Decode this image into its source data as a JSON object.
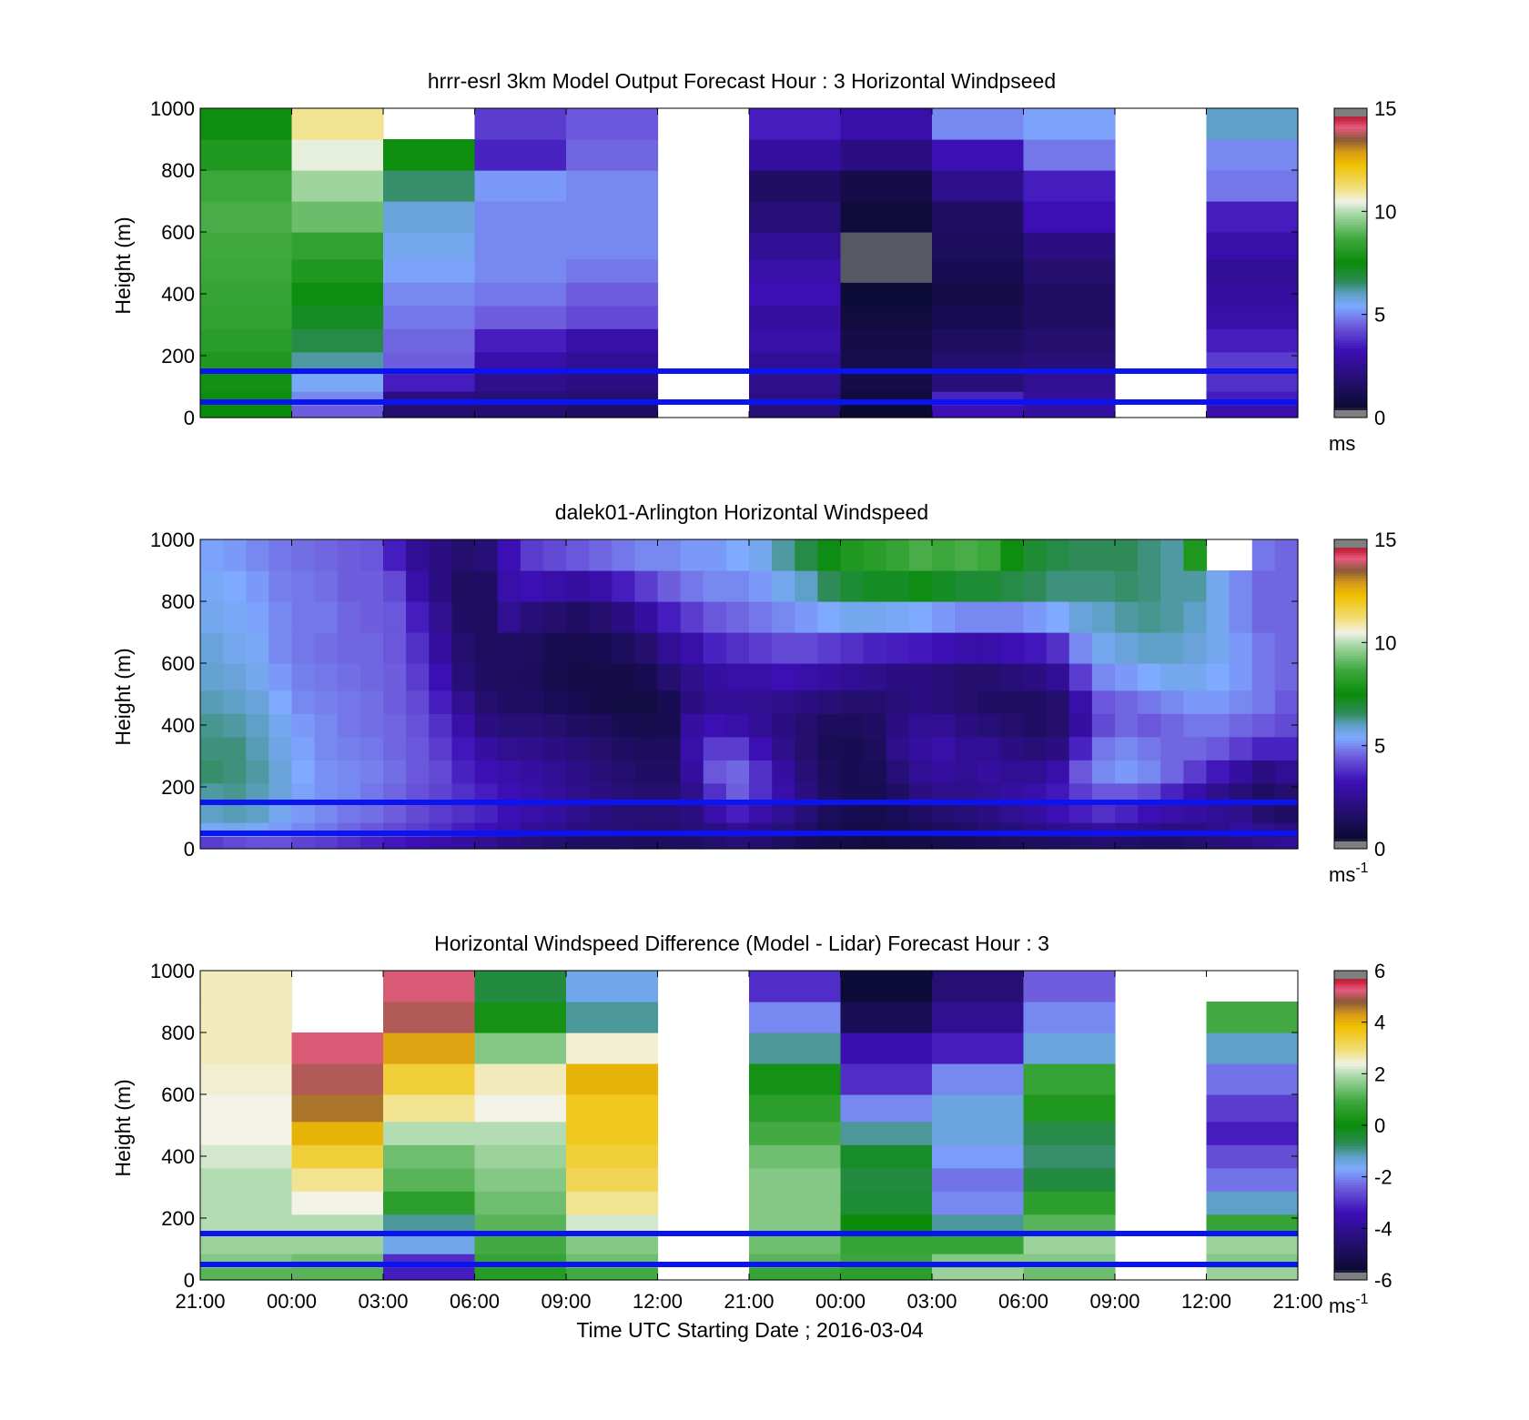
{
  "chart_data": [
    {
      "type": "heatmap",
      "title": "hrrr-esrl 3km Model Output   Forecast Hour : 3 Horizontal Windpseed",
      "ylabel": "Height (m)",
      "ylim": [
        0,
        1000
      ],
      "yticks": [
        "0",
        "200",
        "400",
        "600",
        "800",
        "1000"
      ],
      "colorbar": {
        "label": "ms",
        "sup": "",
        "ticks": [
          "0",
          "5",
          "10",
          "15"
        ],
        "range": [
          0,
          15
        ]
      },
      "hlines": [
        50,
        150
      ],
      "time_columns": [
        "21:00",
        "00:00",
        "03:00",
        "06:00",
        "09:00",
        "12:00",
        "21:00",
        "00:00",
        "03:00",
        "06:00",
        "09:00",
        "12:00"
      ],
      "heights": [
        20,
        60,
        110,
        175,
        250,
        325,
        400,
        475,
        550,
        650,
        750,
        850,
        950
      ],
      "values": [
        [
          7.5,
          7.6,
          7.7,
          8.0,
          8.2,
          8.4,
          8.5,
          8.6,
          8.7,
          8.8,
          8.6,
          8.0,
          7.6
        ],
        [
          4.5,
          5.0,
          5.5,
          6.2,
          6.8,
          7.2,
          7.6,
          8.0,
          8.4,
          9.2,
          9.8,
          10.4,
          11.0
        ],
        [
          1.8,
          2.2,
          3.5,
          4.5,
          4.6,
          4.8,
          5.0,
          5.3,
          5.6,
          5.8,
          6.5,
          7.6,
          null
        ],
        [
          1.8,
          2.0,
          2.4,
          3.0,
          3.5,
          4.5,
          4.8,
          5.0,
          5.0,
          5.0,
          5.2,
          3.6,
          4.0
        ],
        [
          1.6,
          1.8,
          2.2,
          2.6,
          3.0,
          4.2,
          4.5,
          4.8,
          5.0,
          5.0,
          5.0,
          4.6,
          4.4
        ],
        [
          null,
          null,
          null,
          null,
          null,
          null,
          null,
          null,
          null,
          null,
          null,
          null,
          null
        ],
        [
          2.0,
          2.3,
          2.4,
          2.6,
          3.0,
          2.8,
          3.2,
          3.0,
          2.6,
          2.0,
          1.6,
          2.8,
          3.5
        ],
        [
          0.5,
          0.8,
          1.0,
          1.1,
          1.0,
          0.8,
          0.6,
          0.4,
          0.4,
          0.7,
          1.0,
          2.2,
          3.0
        ],
        [
          3.2,
          3.6,
          2.0,
          1.8,
          1.5,
          1.2,
          1.0,
          1.2,
          1.4,
          1.6,
          2.4,
          3.2,
          5.0
        ],
        [
          2.8,
          2.7,
          2.5,
          2.0,
          1.8,
          1.6,
          1.6,
          1.8,
          2.2,
          3.2,
          3.5,
          4.8,
          5.3
        ],
        [
          null,
          null,
          null,
          null,
          null,
          null,
          null,
          null,
          null,
          null,
          null,
          null,
          null
        ],
        [
          3.0,
          3.5,
          3.8,
          4.0,
          3.5,
          3.0,
          2.8,
          2.6,
          3.0,
          3.5,
          4.8,
          5.0,
          6.0
        ]
      ]
    },
    {
      "type": "heatmap",
      "title": "dalek01-Arlington  Horizontal Windspeed",
      "ylabel": "Height (m)",
      "ylim": [
        0,
        1000
      ],
      "yticks": [
        "0",
        "200",
        "400",
        "600",
        "800",
        "1000"
      ],
      "colorbar": {
        "label": "ms",
        "sup": "-1",
        "ticks": [
          "0",
          "5",
          "10",
          "15"
        ],
        "range": [
          0,
          15
        ]
      },
      "hlines": [
        50,
        150
      ],
      "time_axis": {
        "start": "21:00",
        "end": "21:00",
        "columns": 48
      },
      "heights": [
        20,
        60,
        110,
        175,
        250,
        325,
        400,
        475,
        550,
        650,
        750,
        850,
        950
      ],
      "values": [
        [
          4.0,
          5.5,
          6.0,
          6.2,
          6.5,
          6.4,
          6.3,
          6.1,
          5.9,
          5.8,
          5.6,
          5.5,
          5.3
        ],
        [
          4.2,
          5.6,
          6.1,
          6.3,
          6.4,
          6.4,
          6.2,
          6.0,
          5.8,
          5.6,
          5.5,
          5.4,
          5.2
        ],
        [
          4.3,
          5.5,
          6.0,
          6.1,
          6.2,
          6.1,
          6.0,
          5.8,
          5.6,
          5.5,
          5.3,
          5.2,
          5.0
        ],
        [
          4.3,
          5.2,
          5.6,
          5.8,
          5.8,
          5.7,
          5.6,
          5.4,
          5.2,
          5.0,
          5.0,
          4.9,
          4.8
        ],
        [
          4.1,
          5.0,
          5.2,
          5.3,
          5.4,
          5.3,
          5.2,
          5.0,
          4.9,
          4.8,
          4.8,
          4.8,
          4.7
        ],
        [
          4.0,
          4.8,
          5.0,
          5.1,
          5.1,
          5.0,
          5.0,
          4.9,
          4.8,
          4.7,
          4.8,
          4.7,
          4.6
        ],
        [
          3.8,
          4.6,
          4.8,
          5.0,
          5.0,
          4.9,
          4.8,
          4.8,
          4.7,
          4.6,
          4.6,
          4.5,
          4.5
        ],
        [
          3.6,
          4.4,
          4.7,
          4.8,
          4.9,
          4.8,
          4.7,
          4.7,
          4.6,
          4.6,
          4.5,
          4.5,
          4.4
        ],
        [
          3.4,
          4.2,
          4.5,
          4.6,
          4.7,
          4.6,
          4.6,
          4.5,
          4.5,
          4.4,
          4.4,
          4.2,
          3.5
        ],
        [
          3.2,
          4.0,
          4.2,
          4.3,
          4.4,
          4.4,
          4.3,
          4.2,
          4.0,
          3.8,
          3.5,
          3.0,
          2.6
        ],
        [
          3.0,
          3.8,
          4.0,
          4.1,
          4.2,
          4.0,
          3.8,
          3.5,
          3.2,
          2.8,
          2.5,
          2.2,
          2.2
        ],
        [
          2.8,
          3.5,
          3.8,
          3.8,
          3.6,
          3.4,
          3.0,
          2.5,
          2.0,
          1.8,
          1.6,
          1.5,
          1.8
        ],
        [
          2.5,
          3.3,
          3.6,
          3.5,
          3.2,
          2.8,
          2.2,
          1.8,
          1.6,
          1.5,
          1.5,
          1.6,
          2.0
        ],
        [
          2.2,
          3.0,
          3.2,
          3.2,
          3.0,
          2.5,
          2.0,
          1.6,
          1.5,
          1.6,
          2.5,
          3.0,
          3.2
        ],
        [
          2.0,
          2.6,
          3.0,
          3.0,
          2.8,
          2.4,
          2.0,
          1.6,
          1.4,
          1.5,
          2.0,
          3.2,
          4.0
        ],
        [
          1.8,
          2.4,
          2.8,
          2.7,
          2.6,
          2.2,
          1.8,
          1.3,
          1.1,
          1.2,
          1.8,
          3.0,
          4.2
        ],
        [
          1.6,
          2.2,
          2.4,
          2.4,
          2.3,
          2.0,
          1.6,
          1.2,
          1.0,
          1.1,
          1.6,
          2.8,
          4.4
        ],
        [
          1.6,
          2.0,
          2.2,
          2.2,
          2.0,
          1.8,
          1.4,
          1.0,
          1.0,
          1.2,
          1.8,
          3.0,
          4.6
        ],
        [
          1.5,
          1.9,
          2.0,
          2.0,
          1.8,
          1.6,
          1.2,
          0.9,
          1.0,
          1.4,
          2.2,
          3.5,
          4.8
        ],
        [
          1.4,
          1.8,
          1.9,
          1.8,
          1.6,
          1.4,
          1.1,
          0.9,
          1.2,
          1.8,
          2.8,
          4.0,
          5.0
        ],
        [
          1.5,
          1.8,
          2.0,
          1.8,
          1.6,
          1.4,
          1.2,
          1.2,
          1.8,
          2.6,
          3.5,
          4.5,
          5.0
        ],
        [
          1.6,
          2.0,
          2.2,
          2.4,
          2.8,
          3.0,
          2.8,
          2.2,
          2.4,
          3.0,
          4.0,
          4.8,
          5.2
        ],
        [
          1.8,
          2.2,
          3.0,
          3.8,
          4.4,
          4.0,
          3.2,
          2.6,
          2.8,
          3.6,
          4.4,
          5.0,
          5.2
        ],
        [
          2.0,
          2.5,
          3.5,
          4.5,
          4.6,
          4.0,
          3.0,
          2.6,
          3.0,
          3.8,
          4.6,
          5.0,
          5.4
        ],
        [
          1.8,
          2.3,
          3.0,
          3.8,
          3.8,
          3.2,
          2.6,
          2.5,
          3.0,
          4.0,
          4.8,
          5.2,
          5.6
        ],
        [
          1.5,
          2.0,
          2.6,
          3.0,
          2.8,
          2.4,
          2.2,
          2.4,
          3.2,
          4.2,
          5.0,
          5.6,
          6.2
        ],
        [
          1.2,
          1.6,
          2.0,
          2.2,
          2.0,
          1.8,
          1.8,
          2.2,
          3.0,
          4.2,
          5.2,
          6.0,
          6.8
        ],
        [
          1.0,
          1.2,
          1.4,
          1.5,
          1.4,
          1.3,
          1.4,
          2.0,
          2.8,
          4.0,
          5.4,
          6.6,
          7.4
        ],
        [
          0.9,
          1.0,
          1.2,
          1.2,
          1.2,
          1.2,
          1.4,
          1.8,
          2.6,
          3.8,
          5.6,
          7.0,
          8.0
        ],
        [
          0.8,
          1.0,
          1.1,
          1.2,
          1.3,
          1.4,
          1.6,
          1.8,
          2.4,
          3.6,
          5.6,
          7.2,
          8.2
        ],
        [
          0.9,
          1.1,
          1.3,
          1.6,
          2.0,
          2.4,
          2.2,
          2.0,
          2.2,
          3.5,
          5.5,
          7.2,
          8.5
        ],
        [
          1.0,
          1.2,
          1.6,
          2.2,
          2.6,
          2.8,
          2.6,
          2.2,
          2.2,
          3.4,
          5.4,
          7.4,
          8.8
        ],
        [
          1.1,
          1.4,
          1.8,
          2.4,
          2.8,
          3.0,
          2.6,
          2.0,
          2.0,
          3.2,
          5.2,
          7.2,
          8.6
        ],
        [
          1.2,
          1.6,
          2.0,
          2.4,
          2.6,
          2.6,
          2.2,
          1.8,
          1.8,
          3.0,
          5.0,
          7.0,
          8.8
        ],
        [
          1.3,
          1.8,
          2.2,
          2.6,
          2.8,
          2.6,
          2.0,
          1.6,
          1.8,
          3.0,
          5.0,
          7.0,
          8.6
        ],
        [
          1.4,
          2.0,
          2.5,
          2.8,
          2.6,
          2.2,
          1.8,
          1.6,
          2.0,
          3.2,
          5.0,
          6.8,
          7.6
        ],
        [
          1.5,
          2.2,
          2.8,
          3.0,
          2.6,
          2.0,
          1.6,
          1.6,
          2.2,
          3.4,
          5.2,
          6.6,
          7.0
        ],
        [
          1.6,
          2.4,
          3.2,
          3.4,
          3.0,
          2.2,
          1.8,
          1.8,
          2.6,
          3.8,
          5.4,
          6.4,
          6.8
        ],
        [
          1.7,
          2.6,
          3.5,
          4.0,
          4.4,
          3.6,
          2.8,
          3.0,
          4.0,
          5.0,
          5.8,
          6.4,
          6.6
        ],
        [
          1.8,
          2.8,
          3.8,
          4.4,
          5.0,
          4.8,
          4.2,
          4.4,
          5.0,
          5.6,
          6.0,
          6.4,
          6.6
        ],
        [
          1.7,
          2.6,
          3.6,
          4.4,
          5.2,
          5.0,
          4.6,
          4.6,
          5.2,
          5.8,
          6.2,
          6.5,
          6.6
        ],
        [
          1.6,
          2.4,
          3.2,
          4.2,
          5.0,
          4.8,
          4.4,
          4.8,
          5.4,
          6.0,
          6.3,
          6.4,
          6.4
        ],
        [
          1.6,
          2.2,
          3.0,
          3.6,
          4.6,
          4.6,
          4.6,
          5.0,
          5.6,
          6.0,
          6.2,
          6.2,
          6.2
        ],
        [
          1.8,
          2.2,
          2.8,
          3.0,
          4.0,
          4.6,
          4.8,
          5.2,
          5.6,
          5.8,
          6.0,
          6.2,
          8.0
        ],
        [
          2.0,
          2.4,
          2.6,
          2.4,
          3.4,
          4.4,
          4.8,
          5.2,
          5.4,
          5.6,
          5.6,
          5.6,
          null
        ],
        [
          2.2,
          2.8,
          2.4,
          2.0,
          2.8,
          4.0,
          4.6,
          5.0,
          5.2,
          5.2,
          5.0,
          5.0,
          null
        ],
        [
          2.4,
          2.4,
          1.8,
          1.6,
          2.2,
          3.6,
          4.4,
          4.8,
          4.8,
          4.8,
          4.6,
          4.6,
          4.8
        ],
        [
          2.6,
          2.2,
          1.6,
          1.8,
          2.6,
          3.6,
          4.2,
          4.4,
          4.6,
          4.6,
          4.6,
          4.6,
          4.6
        ]
      ]
    },
    {
      "type": "heatmap",
      "title": "Horizontal Windspeed Difference (Model - Lidar) Forecast Hour : 3",
      "ylabel": "Height (m)",
      "xlabel": "Time UTC  Starting Date ; 2016-03-04",
      "ylim": [
        0,
        1000
      ],
      "yticks": [
        "0",
        "200",
        "400",
        "600",
        "800",
        "1000"
      ],
      "xticks": [
        "21:00",
        "00:00",
        "03:00",
        "06:00",
        "09:00",
        "12:00",
        "21:00",
        "00:00",
        "03:00",
        "06:00",
        "09:00",
        "12:00",
        "21:00"
      ],
      "colorbar": {
        "label": "ms",
        "sup": "-1",
        "ticks": [
          "-6",
          "-4",
          "-2",
          "0",
          "2",
          "4",
          "6"
        ],
        "range": [
          -6,
          6
        ]
      },
      "hlines": [
        50,
        150
      ],
      "heights": [
        20,
        60,
        110,
        175,
        250,
        325,
        400,
        475,
        550,
        650,
        750,
        850,
        950
      ],
      "values": [
        [
          1.2,
          1.6,
          1.8,
          2.0,
          2.0,
          2.0,
          2.2,
          2.4,
          2.4,
          2.5,
          2.6,
          2.6,
          2.6
        ],
        [
          1.2,
          1.4,
          1.8,
          2.0,
          2.4,
          2.8,
          3.4,
          4.0,
          4.6,
          5.0,
          5.2,
          null,
          null
        ],
        [
          -3.2,
          -3.0,
          -1.5,
          -1.0,
          0.6,
          1.2,
          1.4,
          2.0,
          2.8,
          3.4,
          4.2,
          5.0,
          5.2
        ],
        [
          0.5,
          0.8,
          1.0,
          1.2,
          1.4,
          1.6,
          1.8,
          2.0,
          2.4,
          2.6,
          1.6,
          0.2,
          -0.5
        ],
        [
          1.0,
          1.4,
          1.6,
          2.2,
          2.8,
          3.2,
          3.4,
          3.6,
          3.6,
          4.0,
          2.5,
          -1.0,
          -1.5
        ],
        [
          null,
          null,
          null,
          null,
          null,
          null,
          null,
          null,
          null,
          null,
          null,
          null,
          null
        ],
        [
          0.8,
          1.2,
          1.4,
          1.6,
          1.6,
          1.6,
          1.4,
          1.0,
          0.6,
          0.2,
          -1.0,
          -2.0,
          -3.0
        ],
        [
          0.6,
          0.9,
          0.8,
          0.0,
          -0.4,
          -0.5,
          -0.3,
          -1.0,
          -2.0,
          -3.0,
          -3.5,
          -5.0,
          -5.5
        ],
        [
          1.8,
          1.6,
          0.8,
          -1.0,
          -2.0,
          -2.2,
          -1.8,
          -1.4,
          -1.4,
          -2.0,
          -3.2,
          -4.0,
          -4.5
        ],
        [
          1.4,
          1.6,
          1.8,
          1.2,
          0.6,
          -0.5,
          -0.8,
          -0.6,
          0.4,
          0.8,
          -1.4,
          -2.0,
          -2.4
        ],
        [
          null,
          null,
          null,
          null,
          null,
          null,
          null,
          null,
          null,
          null,
          null,
          null,
          null
        ],
        [
          1.8,
          1.6,
          1.8,
          0.8,
          -1.2,
          -2.2,
          -2.6,
          -3.2,
          -2.8,
          -2.2,
          -1.2,
          1.0,
          null
        ]
      ]
    }
  ]
}
